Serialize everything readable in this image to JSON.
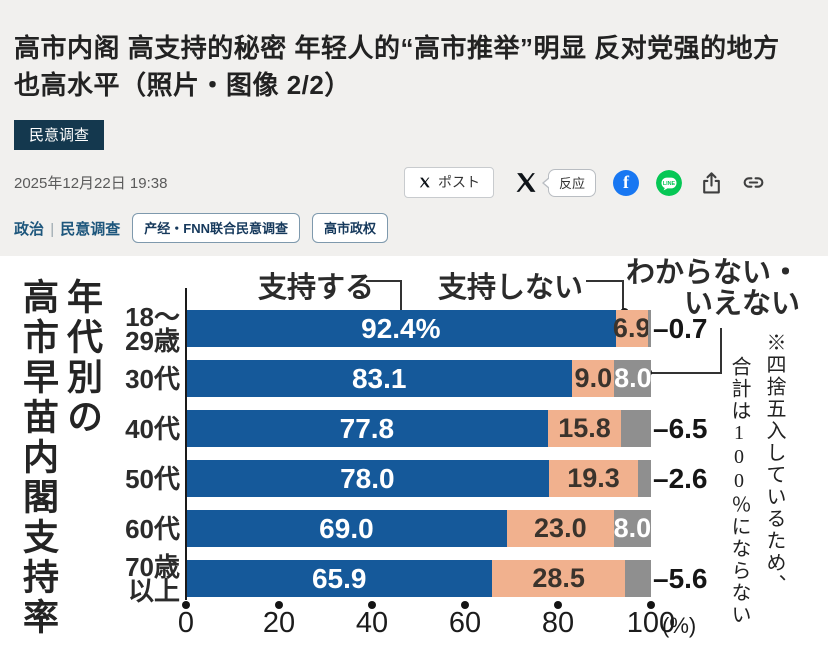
{
  "page": {
    "title": "高市内阁 高支持的秘密 年轻人的“高市推举”明显 反对党强的地方也高水平（照片・图像 2/2）",
    "category_badge": "民意调查",
    "date": "2025年12月22日 19:38"
  },
  "share": {
    "x_post_label": "ポスト",
    "reaction_label": "反应",
    "facebook_letter": "f",
    "line_label": "LINE",
    "icons": [
      "x-post-button",
      "x-logo",
      "reaction-bubble",
      "facebook-icon",
      "line-icon",
      "share-icon",
      "link-icon"
    ]
  },
  "tags": {
    "links": [
      "政治",
      "民意调查"
    ],
    "separator": "|",
    "buttons": [
      "产经・FNN联合民意调查",
      "高市政权"
    ]
  },
  "chart_data": {
    "type": "bar",
    "orientation": "horizontal",
    "stacked": true,
    "title": "年代別の高市早苗内閣支持率",
    "title_column_main": "高市早苗内閣支持率",
    "title_column_sub": "年代別の",
    "legend": [
      "支持する",
      "支持しない",
      "わからない・いえない"
    ],
    "legend_support": "支持する",
    "legend_oppose": "支持しない",
    "legend_unknown_line1": "わからない・",
    "legend_unknown_line2": "いえない",
    "note": "※四捨五入しているため、合計は100％にならない",
    "note_column1": "※四捨五入しているため、",
    "note_column2": "合計は100％にならない",
    "xlim": [
      0,
      100
    ],
    "x_ticks": [
      "0",
      "20",
      "40",
      "60",
      "80",
      "100"
    ],
    "x_unit": "(%)",
    "dash": "–",
    "colors": {
      "support": "#15599a",
      "oppose": "#f1b18e",
      "unknown": "#8f8f8f"
    },
    "series_names": [
      "支持する",
      "支持しない",
      "わからない・いえない"
    ],
    "rows": [
      {
        "category_lines": [
          "18～",
          "29歳"
        ],
        "support": 92.4,
        "support_label": "92.4%",
        "oppose": 6.9,
        "oppose_label": "6.9",
        "unknown": 0.7,
        "unknown_label": "0.7",
        "unknown_placement": "outside"
      },
      {
        "category_lines": [
          "30代"
        ],
        "support": 83.1,
        "support_label": "83.1",
        "oppose": 9.0,
        "oppose_label": "9.0",
        "unknown": 8.0,
        "unknown_label": "8.0",
        "unknown_placement": "inside"
      },
      {
        "category_lines": [
          "40代"
        ],
        "support": 77.8,
        "support_label": "77.8",
        "oppose": 15.8,
        "oppose_label": "15.8",
        "unknown": 6.5,
        "unknown_label": "6.5",
        "unknown_placement": "outside"
      },
      {
        "category_lines": [
          "50代"
        ],
        "support": 78.0,
        "support_label": "78.0",
        "oppose": 19.3,
        "oppose_label": "19.3",
        "unknown": 2.6,
        "unknown_label": "2.6",
        "unknown_placement": "outside"
      },
      {
        "category_lines": [
          "60代"
        ],
        "support": 69.0,
        "support_label": "69.0",
        "oppose": 23.0,
        "oppose_label": "23.0",
        "unknown": 8.0,
        "unknown_label": "8.0",
        "unknown_placement": "inside"
      },
      {
        "category_lines": [
          "70歳",
          "以上"
        ],
        "support": 65.9,
        "support_label": "65.9",
        "oppose": 28.5,
        "oppose_label": "28.5",
        "unknown": 5.6,
        "unknown_label": "5.6",
        "unknown_placement": "outside"
      }
    ]
  }
}
